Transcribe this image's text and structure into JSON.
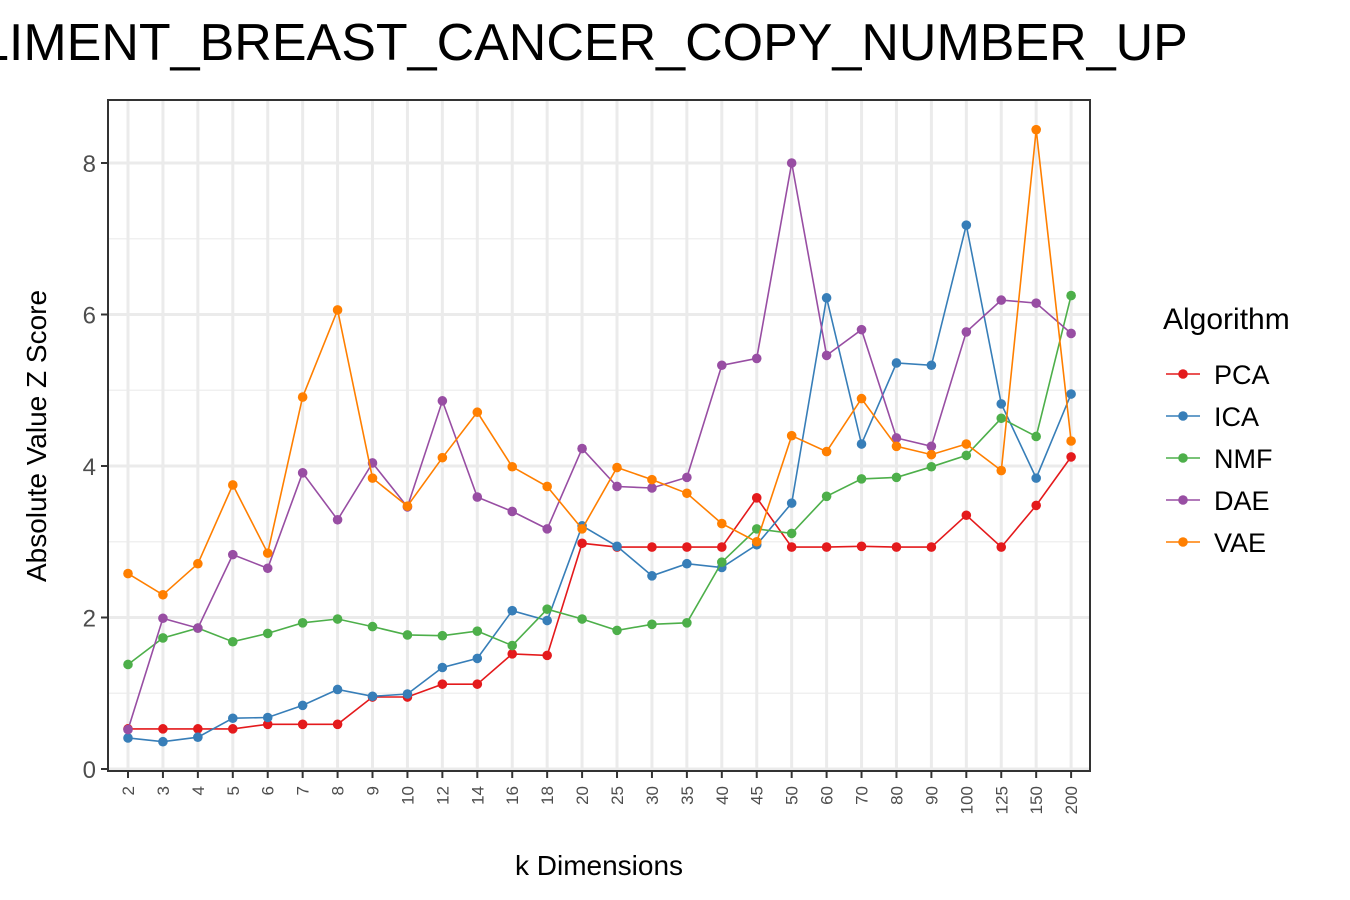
{
  "chart_data": {
    "type": "line",
    "title": "LIMENT_BREAST_CANCER_COPY_NUMBER_UP",
    "xlabel": "k Dimensions",
    "ylabel": "Absolute Value Z Score",
    "categories": [
      "2",
      "3",
      "4",
      "5",
      "6",
      "7",
      "8",
      "9",
      "10",
      "12",
      "14",
      "16",
      "18",
      "20",
      "25",
      "30",
      "35",
      "40",
      "45",
      "50",
      "60",
      "70",
      "80",
      "90",
      "100",
      "125",
      "150",
      "200"
    ],
    "ylim": [
      0,
      8.8
    ],
    "yticks": [
      0,
      2,
      4,
      6,
      8
    ],
    "grid": true,
    "legend": {
      "title": "Algorithm",
      "position": "right"
    },
    "series": [
      {
        "name": "PCA",
        "color": "#E41A1C",
        "values": [
          0.53,
          0.53,
          0.53,
          0.53,
          0.59,
          0.59,
          0.59,
          0.95,
          0.95,
          1.12,
          1.12,
          1.52,
          1.5,
          2.98,
          2.93,
          2.93,
          2.93,
          2.93,
          3.58,
          2.93,
          2.93,
          2.94,
          2.93,
          2.93,
          3.35,
          2.93,
          3.48,
          4.12
        ]
      },
      {
        "name": "ICA",
        "color": "#377EB8",
        "values": [
          0.41,
          0.36,
          0.42,
          0.67,
          0.68,
          0.84,
          1.05,
          0.96,
          0.99,
          1.34,
          1.46,
          2.09,
          1.96,
          3.21,
          2.94,
          2.55,
          2.71,
          2.66,
          2.96,
          3.51,
          6.22,
          4.29,
          5.36,
          5.33,
          7.18,
          4.82,
          3.84,
          4.95
        ]
      },
      {
        "name": "NMF",
        "color": "#4DAF4A",
        "values": [
          1.38,
          1.73,
          1.86,
          1.68,
          1.79,
          1.93,
          1.98,
          1.88,
          1.77,
          1.76,
          1.82,
          1.63,
          2.11,
          1.98,
          1.83,
          1.91,
          1.93,
          2.73,
          3.17,
          3.11,
          3.6,
          3.83,
          3.85,
          3.99,
          4.14,
          4.63,
          4.39,
          6.25
        ]
      },
      {
        "name": "DAE",
        "color": "#984EA3",
        "values": [
          0.52,
          1.99,
          1.86,
          2.83,
          2.65,
          3.91,
          3.29,
          4.04,
          3.46,
          4.86,
          3.59,
          3.4,
          3.17,
          4.23,
          3.73,
          3.71,
          3.85,
          5.33,
          5.42,
          8.0,
          5.46,
          5.8,
          4.37,
          4.26,
          5.77,
          6.19,
          6.15,
          5.75
        ]
      },
      {
        "name": "VAE",
        "color": "#FF7F00",
        "values": [
          2.58,
          2.3,
          2.71,
          3.75,
          2.85,
          4.91,
          6.06,
          3.84,
          3.47,
          4.11,
          4.71,
          3.99,
          3.73,
          3.17,
          3.98,
          3.82,
          3.64,
          3.24,
          3.0,
          4.4,
          4.19,
          4.89,
          4.26,
          4.15,
          4.29,
          3.94,
          8.44,
          4.33
        ]
      }
    ]
  }
}
